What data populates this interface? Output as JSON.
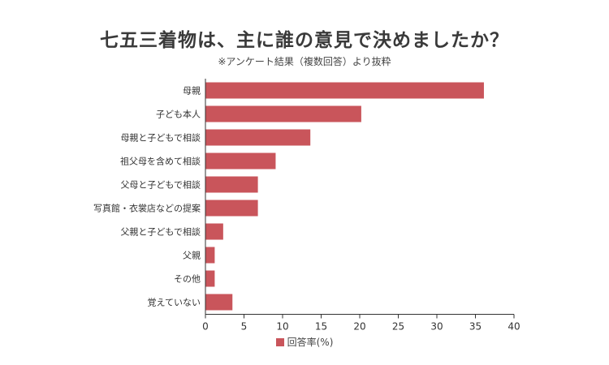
{
  "title": "七五三着物は、主に誰の意見で決めましたか？",
  "subtitle": "※アンケート結果（複数回答）より抜粋",
  "legend": {
    "label": "回答率(%)",
    "color": "#c9555b"
  },
  "chart_data": {
    "type": "bar",
    "orientation": "horizontal",
    "categories": [
      "母親",
      "子ども本人",
      "母親と子どもで相談",
      "祖父母を含めて相談",
      "父母と子どもで相談",
      "写真館・衣裳店などの提案",
      "父親と子どもで相談",
      "父親",
      "その他",
      "覚えていない"
    ],
    "series": [
      {
        "name": "回答率(%)",
        "values": [
          36.1,
          20.2,
          13.6,
          9.1,
          6.8,
          6.8,
          2.3,
          1.2,
          1.2,
          3.5
        ]
      }
    ],
    "xlim": [
      0,
      40
    ],
    "xticks": [
      "0",
      "5",
      "10",
      "15",
      "20",
      "25",
      "30",
      "35",
      "40"
    ],
    "grid": false,
    "legend_position": "bottom",
    "bar_color": "#c9555b"
  }
}
